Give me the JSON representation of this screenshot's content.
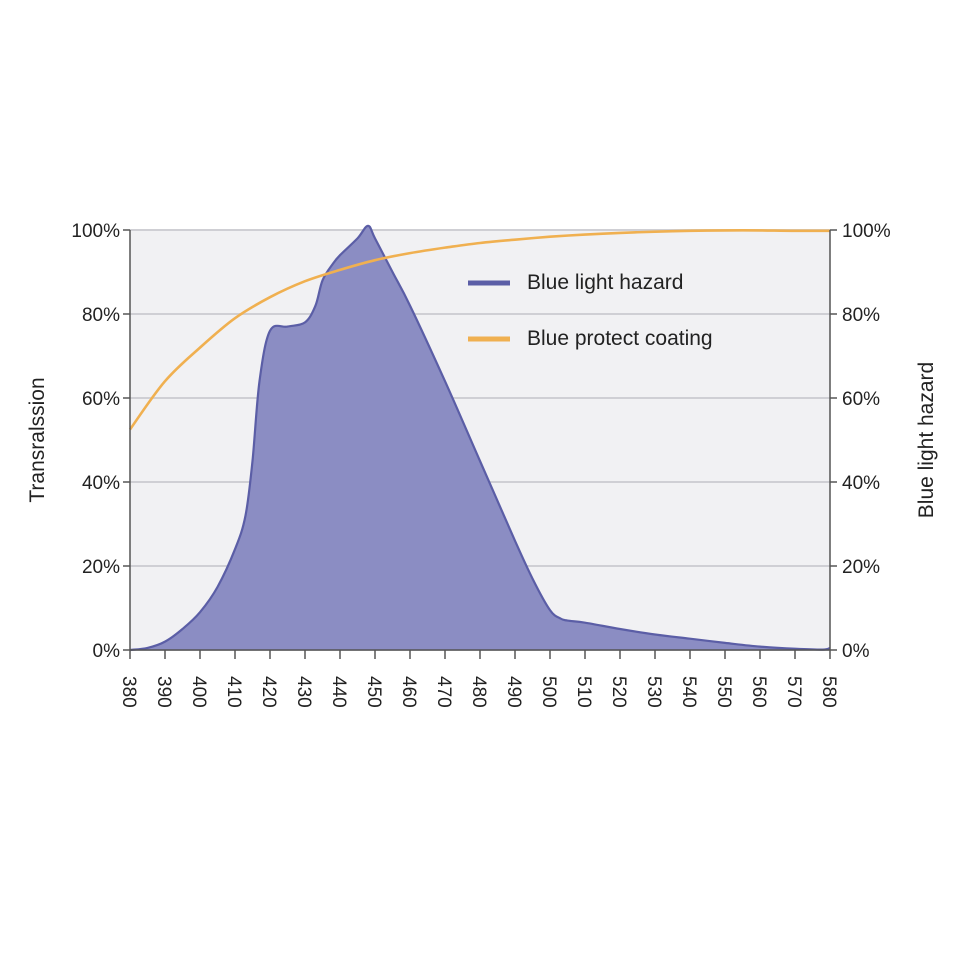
{
  "chart_data": {
    "type": "area",
    "title": "",
    "xlabel": "",
    "ylabel": "Transralssion",
    "y2label": "Blue light hazard",
    "xlim": [
      380,
      580
    ],
    "ylim": [
      0,
      100
    ],
    "grid": true,
    "legend_position": "top-right",
    "x_ticks": [
      "380",
      "390",
      "400",
      "410",
      "420",
      "430",
      "440",
      "450",
      "460",
      "470",
      "480",
      "490",
      "500",
      "510",
      "520",
      "530",
      "540",
      "550",
      "560",
      "570",
      "580"
    ],
    "y_ticks": [
      "0%",
      "20%",
      "40%",
      "60%",
      "80%",
      "100%"
    ],
    "y2_ticks": [
      "0%",
      "20%",
      "40%",
      "60%",
      "80%",
      "100%"
    ],
    "series": [
      {
        "name": "Blue light hazard",
        "kind": "area",
        "color": "#5b5ea6",
        "fill": "#8b8dc3",
        "x": [
          380,
          385,
          390,
          395,
          400,
          405,
          410,
          413,
          415,
          417,
          420,
          425,
          430,
          433,
          435,
          438,
          440,
          445,
          448,
          450,
          455,
          460,
          470,
          480,
          490,
          495,
          500,
          503,
          505,
          510,
          520,
          530,
          540,
          550,
          560,
          570,
          578,
          580
        ],
        "y": [
          0,
          0.5,
          2,
          5,
          9,
          15,
          24,
          32,
          45,
          64,
          76,
          77,
          78,
          82,
          88,
          92,
          94,
          98,
          101,
          98,
          90,
          82,
          64,
          45,
          26,
          17,
          9.5,
          7.5,
          7,
          6.5,
          5,
          3.7,
          2.7,
          1.7,
          0.8,
          0.3,
          0.1,
          0.5
        ]
      },
      {
        "name": "Blue protect coating",
        "kind": "line",
        "color": "#f0b050",
        "x": [
          380,
          390,
          400,
          410,
          420,
          430,
          440,
          450,
          460,
          470,
          480,
          490,
          500,
          510,
          520,
          530,
          540,
          550,
          560,
          570,
          580
        ],
        "y": [
          52.5,
          64,
          72,
          79,
          84,
          87.8,
          90.5,
          92.8,
          94.5,
          95.8,
          96.9,
          97.7,
          98.4,
          98.9,
          99.3,
          99.6,
          99.8,
          99.9,
          99.9,
          99.8,
          99.8
        ]
      }
    ]
  }
}
